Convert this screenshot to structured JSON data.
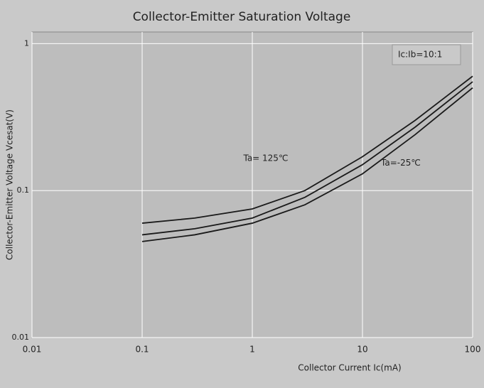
{
  "chart_data": {
    "type": "line",
    "title": "Collector-Emitter Saturation Voltage",
    "annotation": "Ic:Ib=10:1",
    "x_label": "Collector Current   Ic(mA)",
    "y_label": "Collector-Emitter Voltage   Vcesat(V)",
    "x": [
      0.1,
      0.3,
      1,
      3,
      10,
      30,
      100
    ],
    "series": [
      {
        "name": "Ta= 125℃",
        "color": "#1a1a1a",
        "values": [
          0.06,
          0.065,
          0.075,
          0.1,
          0.17,
          0.3,
          0.6
        ]
      },
      {
        "color": "#1a1a1a",
        "values": [
          0.05,
          0.055,
          0.065,
          0.09,
          0.15,
          0.27,
          0.55
        ]
      },
      {
        "name": "Ta=-25℃",
        "color": "#1a1a1a",
        "values": [
          0.045,
          0.05,
          0.06,
          0.08,
          0.13,
          0.24,
          0.5
        ]
      }
    ],
    "xlim": [
      0.01,
      100
    ],
    "xticks": [
      0.01,
      0.1,
      1,
      10,
      100
    ],
    "ylim": [
      0.01,
      1.2
    ],
    "yticks": [
      0.01,
      0.1,
      1
    ],
    "x_log": true,
    "y_log": true,
    "grid": true
  }
}
